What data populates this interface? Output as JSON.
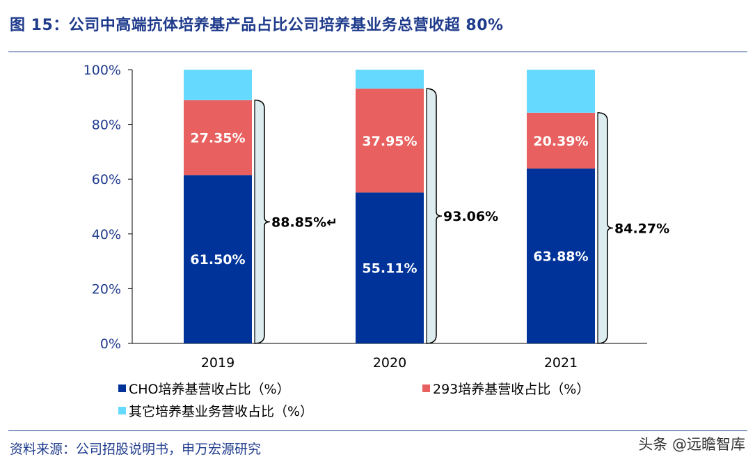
{
  "title": "图 15：公司中高端抗体培养基产品占比公司培养基业务总营收超 80%",
  "source": "资料来源：公司招股说明书，申万宏源研究",
  "watermark": "头条 @远瞻智库",
  "colors": {
    "title": "#1f3b8c",
    "axis_text": "#1f3b8c",
    "cho": "#003399",
    "s293": "#e8605f",
    "other": "#66d9ff",
    "brace_fill": "#dcecef"
  },
  "chart_data": {
    "type": "bar",
    "stacked": true,
    "categories": [
      "2019",
      "2020",
      "2021"
    ],
    "ylim": [
      0,
      100
    ],
    "yticks": [
      "0%",
      "20%",
      "40%",
      "60%",
      "80%",
      "100%"
    ],
    "series": [
      {
        "name": "CHO培养基营收占比（%）",
        "values": [
          61.5,
          55.11,
          63.88
        ],
        "labels": [
          "61.50%",
          "55.11%",
          "63.88%"
        ]
      },
      {
        "name": "293培养基营收占比（%）",
        "values": [
          27.35,
          37.95,
          20.39
        ],
        "labels": [
          "27.35%",
          "37.95%",
          "20.39%"
        ]
      },
      {
        "name": "其它培养基业务营收占比（%）",
        "values": [
          11.15,
          6.94,
          15.73
        ]
      }
    ],
    "annotations": [
      "88.85%↵",
      "93.06%",
      "84.27%"
    ],
    "legend_position": "bottom"
  }
}
